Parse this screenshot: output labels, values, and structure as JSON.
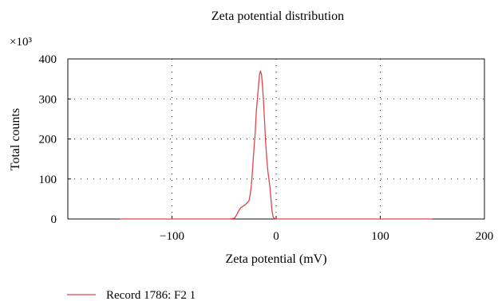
{
  "chart_data": {
    "type": "line",
    "title": "Zeta potential distribution",
    "xlabel": "Zeta potential (mV)",
    "ylabel": "Total counts",
    "y_multiplier": "×10³",
    "xlim": [
      -200,
      200
    ],
    "ylim": [
      0,
      400
    ],
    "x_ticks": [
      -100,
      0,
      100,
      200
    ],
    "x_tick_labels": [
      "−100",
      "0",
      "100",
      "200"
    ],
    "y_ticks": [
      0,
      100,
      200,
      300,
      400
    ],
    "y_tick_labels": [
      "0",
      "100",
      "200",
      "300",
      "400"
    ],
    "grid": "dotted",
    "legend_position": "bottom-left",
    "series": [
      {
        "name": "Record 1786: F2 1",
        "color": "#e0454a",
        "x": [
          -150,
          -60,
          -45,
          -40,
          -38,
          -36,
          -34,
          -30,
          -28,
          -26,
          -25,
          -24,
          -23,
          -22,
          -21,
          -20,
          -19,
          -18,
          -17,
          -16,
          -15,
          -14,
          -13,
          -12,
          -11,
          -10,
          -9,
          -8,
          -7,
          -6,
          -5,
          -4,
          -3,
          -2,
          0,
          20,
          60,
          150
        ],
        "y": [
          0,
          0,
          0,
          2,
          10,
          20,
          28,
          35,
          40,
          46,
          60,
          80,
          110,
          150,
          185,
          220,
          270,
          300,
          330,
          360,
          370,
          360,
          330,
          290,
          240,
          190,
          150,
          120,
          100,
          80,
          50,
          20,
          6,
          2,
          0,
          0,
          0,
          0
        ]
      }
    ]
  }
}
